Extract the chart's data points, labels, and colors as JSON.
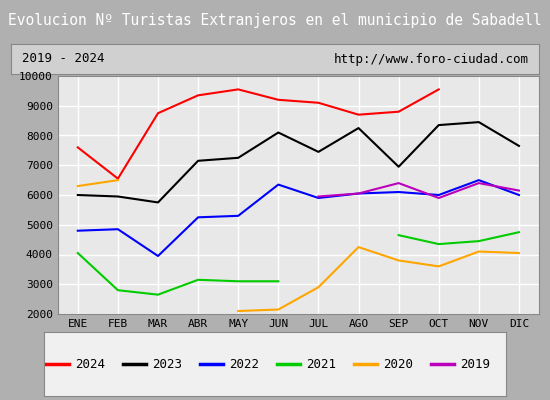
{
  "title": "Evolucion Nº Turistas Extranjeros en el municipio de Sabadell",
  "subtitle_left": "2019 - 2024",
  "subtitle_right": "http://www.foro-ciudad.com",
  "months": [
    "ENE",
    "FEB",
    "MAR",
    "ABR",
    "MAY",
    "JUN",
    "JUL",
    "AGO",
    "SEP",
    "OCT",
    "NOV",
    "DIC"
  ],
  "series_colors": {
    "2024": "#ff0000",
    "2023": "#000000",
    "2022": "#0000ff",
    "2021": "#00cc00",
    "2020": "#ffa500",
    "2019": "#bb00bb"
  },
  "ylim": [
    2000,
    10000
  ],
  "yticks": [
    2000,
    3000,
    4000,
    5000,
    6000,
    7000,
    8000,
    9000,
    10000
  ],
  "title_bg_color": "#3a7abf",
  "title_text_color": "#ffffff",
  "subtitle_bg_color": "#d0d0d0",
  "plot_bg_color": "#e8e8e8",
  "grid_color": "#ffffff",
  "outer_bg_color": "#b0b0b0"
}
